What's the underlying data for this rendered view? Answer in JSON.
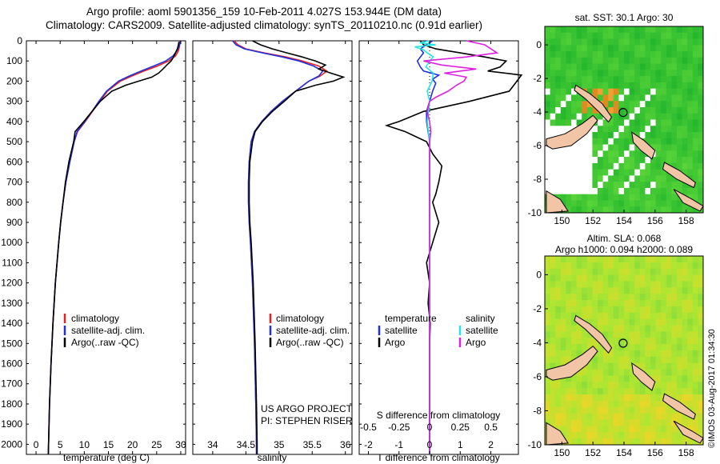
{
  "header": {
    "line1": "Argo profile: aoml 5901356_159 10-Feb-2011 4.027S 153.944E (DM data)",
    "line2": "Climatology: CARS2009. Satellite-adjusted climatology: synTS_20110210.nc (0.91d earlier)"
  },
  "colors": {
    "climatology": "#e8211f",
    "satellite": "#1f2fe0",
    "argo": "#000000",
    "s_satellite": "#22e6e6",
    "s_argo": "#e020e0"
  },
  "chart_data": [
    {
      "type": "line",
      "id": "temperature",
      "xlabel": "temperature (deg C)",
      "ylabel": "",
      "xlim": [
        -2,
        31
      ],
      "ylim": [
        2050,
        0
      ],
      "xticks": [
        0,
        5,
        10,
        15,
        20,
        25,
        30
      ],
      "yticks": [
        0,
        100,
        200,
        300,
        400,
        500,
        600,
        700,
        800,
        900,
        1000,
        1100,
        1200,
        1300,
        1400,
        1500,
        1600,
        1700,
        1800,
        1900,
        2000
      ],
      "legend": [
        "climatology",
        "satellite-adj. clim.",
        "Argo(..raw -QC)"
      ],
      "series": [
        {
          "name": "climatology",
          "depth": [
            0,
            10,
            30,
            50,
            75,
            100,
            125,
            150,
            175,
            200,
            250,
            300,
            350,
            400,
            450,
            500,
            600,
            700,
            800,
            900,
            1000,
            1200,
            1400,
            1600,
            1800,
            2000,
            2050
          ],
          "values": [
            29.8,
            29.8,
            29.7,
            29.5,
            28.9,
            27.5,
            25.2,
            22.4,
            19.8,
            17.5,
            14.8,
            13.2,
            11.7,
            10.2,
            8.6,
            7.9,
            7.0,
            6.2,
            5.6,
            5.1,
            4.7,
            4.0,
            3.5,
            3.1,
            2.8,
            2.6,
            2.55
          ]
        },
        {
          "name": "satellite-adj. clim.",
          "depth": [
            0,
            10,
            30,
            50,
            75,
            100,
            125,
            150,
            175,
            200,
            250,
            300,
            350,
            400,
            450,
            500,
            600,
            700,
            800,
            900,
            1000,
            1200,
            1400,
            1600,
            1800,
            2000,
            2050
          ],
          "values": [
            29.9,
            29.9,
            29.6,
            29.2,
            28.4,
            26.9,
            24.4,
            21.8,
            19.3,
            17.1,
            14.6,
            13.0,
            11.6,
            10.1,
            8.5,
            7.9,
            7.0,
            6.2,
            5.6,
            5.1,
            4.7,
            4.0,
            3.5,
            3.1,
            2.8,
            2.6,
            2.55
          ]
        },
        {
          "name": "Argo(..raw -QC)",
          "depth": [
            5,
            20,
            40,
            60,
            80,
            100,
            120,
            140,
            160,
            180,
            200,
            220,
            250,
            300,
            350,
            400,
            450,
            500,
            600,
            700,
            800,
            900,
            1000,
            1200,
            1400,
            1600,
            1800,
            2000,
            2050
          ],
          "values": [
            29.6,
            29.5,
            29.3,
            28.9,
            28.5,
            28.0,
            27.1,
            26.3,
            25.4,
            24.0,
            21.3,
            18.6,
            15.7,
            13.3,
            11.6,
            9.9,
            8.1,
            7.8,
            6.8,
            6.1,
            5.6,
            5.1,
            4.7,
            4.0,
            3.5,
            3.1,
            2.8,
            2.6,
            2.55
          ]
        }
      ]
    },
    {
      "type": "line",
      "id": "salinity",
      "xlabel": "salinity",
      "xlim": [
        33.7,
        36.1
      ],
      "ylim": [
        2050,
        0
      ],
      "xticks": [
        34,
        34.5,
        35,
        35.5,
        36
      ],
      "legend": [
        "climatology",
        "satellite-adj. clim.",
        "Argo(..raw -QC)"
      ],
      "series": [
        {
          "name": "climatology",
          "depth": [
            0,
            20,
            40,
            60,
            80,
            100,
            125,
            150,
            175,
            200,
            250,
            300,
            350,
            400,
            450,
            500,
            600,
            700,
            800,
            900,
            1000,
            1200,
            1500,
            1800,
            2000,
            2050
          ],
          "values": [
            34.32,
            34.38,
            34.5,
            34.78,
            35.1,
            35.35,
            35.6,
            35.72,
            35.62,
            35.45,
            35.25,
            35.05,
            34.88,
            34.74,
            34.63,
            34.58,
            34.55,
            34.54,
            34.54,
            34.55,
            34.57,
            34.6,
            34.63,
            34.65,
            34.66,
            34.66
          ]
        },
        {
          "name": "satellite-adj. clim.",
          "depth": [
            0,
            20,
            40,
            60,
            80,
            100,
            125,
            150,
            175,
            200,
            250,
            300,
            350,
            400,
            450,
            500,
            600,
            700,
            800,
            900,
            1000,
            1200,
            1500,
            1800,
            2000,
            2050
          ],
          "values": [
            34.3,
            34.35,
            34.48,
            34.75,
            35.05,
            35.3,
            35.52,
            35.66,
            35.6,
            35.45,
            35.25,
            35.05,
            34.88,
            34.74,
            34.63,
            34.58,
            34.55,
            34.54,
            34.54,
            34.55,
            34.57,
            34.6,
            34.63,
            34.65,
            34.66,
            34.66
          ]
        },
        {
          "name": "Argo(..raw -QC)",
          "depth": [
            0,
            20,
            40,
            60,
            80,
            100,
            120,
            140,
            160,
            180,
            200,
            220,
            250,
            300,
            350,
            400,
            450,
            500,
            600,
            700,
            800,
            900,
            1000,
            1200,
            1500,
            1800,
            2000,
            2050
          ],
          "values": [
            34.6,
            34.72,
            34.9,
            35.12,
            35.35,
            35.55,
            35.7,
            35.6,
            35.78,
            35.97,
            35.82,
            35.55,
            35.25,
            35.08,
            34.9,
            34.75,
            34.64,
            34.6,
            34.56,
            34.55,
            34.55,
            34.56,
            34.58,
            34.61,
            34.64,
            34.66,
            34.67,
            34.67
          ]
        }
      ]
    },
    {
      "type": "line",
      "id": "difference",
      "xlabel": "T difference from climatology",
      "xlabel_top": "S difference from climatology",
      "xlim": [
        -2.3,
        2.9
      ],
      "ylim": [
        2050,
        0
      ],
      "xticks": [
        -2,
        -1,
        0,
        1,
        2
      ],
      "xticks_s": [
        -0.5,
        -0.25,
        0,
        0.25,
        0.5
      ],
      "legend_left_title": "temperature",
      "legend_right_title": "salinity",
      "legend": [
        "satellite",
        "Argo",
        "satellite",
        "Argo"
      ],
      "series": [
        {
          "name": "T satellite",
          "depth": [
            0,
            20,
            40,
            60,
            80,
            100,
            130,
            150,
            170,
            190,
            210,
            250,
            300,
            350,
            400,
            450,
            500,
            600,
            700,
            800,
            900,
            1000,
            1200,
            1500,
            1800,
            2000,
            2050
          ],
          "values": [
            0.1,
            -0.1,
            -0.3,
            -0.2,
            -0.3,
            -0.4,
            -0.3,
            -0.2,
            0.3,
            0.1,
            0.2,
            0.1,
            0,
            -0.1,
            -0.1,
            -0.05,
            0,
            0,
            0,
            0,
            0,
            0,
            0,
            0,
            0,
            0,
            0
          ]
        },
        {
          "name": "T Argo",
          "depth": [
            0,
            20,
            40,
            60,
            80,
            100,
            130,
            150,
            170,
            190,
            210,
            250,
            300,
            350,
            400,
            420,
            450,
            500,
            560,
            620,
            700,
            760,
            800,
            900,
            1000,
            1050,
            1100,
            1200,
            1300,
            1400,
            1500,
            1600,
            1700,
            1800,
            1900,
            2000,
            2050
          ],
          "values": [
            -0.3,
            -0.2,
            0.2,
            1.0,
            1.8,
            2.5,
            2.3,
            1.9,
            3.0,
            2.9,
            2.8,
            2.6,
            1.3,
            -0.2,
            -1.0,
            -1.4,
            -0.8,
            -0.1,
            0.1,
            0.4,
            0.3,
            0.2,
            0.1,
            0.3,
            0.1,
            0.0,
            -0.1,
            0.0,
            -0.05,
            0.02,
            0.0,
            0.0,
            0.0,
            0.0,
            0.0,
            0.0,
            0.0
          ]
        },
        {
          "name": "S satellite",
          "depth": [
            0,
            10,
            20,
            30,
            45,
            60,
            80,
            100,
            130,
            160,
            200,
            250,
            300,
            400,
            500,
            600,
            800,
            1000,
            1200,
            1500,
            1800,
            2000,
            2050
          ],
          "values": [
            0.0,
            -0.08,
            0.05,
            -0.12,
            -0.05,
            -0.02,
            0.03,
            0.0,
            -0.03,
            0.03,
            0.02,
            -0.02,
            0.0,
            -0.02,
            0.0,
            0.0,
            0.0,
            0.0,
            0.0,
            0.0,
            0.0,
            0.0,
            0.0
          ]
        },
        {
          "name": "S Argo",
          "depth": [
            0,
            20,
            40,
            60,
            80,
            100,
            120,
            140,
            160,
            180,
            200,
            220,
            250,
            280,
            300,
            350,
            400,
            450,
            500,
            600,
            800,
            1000,
            1200,
            1500,
            1800,
            2000,
            2050
          ],
          "values": [
            0.3,
            0.45,
            0.5,
            0.55,
            0.3,
            -0.05,
            0.1,
            0.38,
            0.12,
            0.3,
            0.28,
            0.22,
            0.15,
            0.05,
            0.0,
            -0.02,
            0.0,
            0.01,
            0.0,
            0.0,
            0.0,
            0.0,
            0.0,
            0.0,
            0.0,
            0.0,
            0.0
          ]
        }
      ]
    }
  ],
  "project": {
    "line1": "US ARGO PROJECT",
    "line2": "PI: STEPHEN RISER"
  },
  "maps": {
    "sst": {
      "title": "sat. SST: 30.1  Argo: 30",
      "xticks": [
        150,
        152,
        154,
        156,
        158
      ],
      "yticks": [
        0,
        -2,
        -4,
        -6,
        -8,
        -10
      ]
    },
    "sla": {
      "title1": "Altim. SLA: 0.068",
      "title2": "Argo h1000: 0.094  h2000: 0.089",
      "xticks": [
        150,
        152,
        154,
        156,
        158
      ],
      "yticks": [
        0,
        -2,
        -4,
        -6,
        -8,
        -10
      ]
    },
    "stamp": "©IMOS 03-Aug-2017 01:34:30"
  }
}
